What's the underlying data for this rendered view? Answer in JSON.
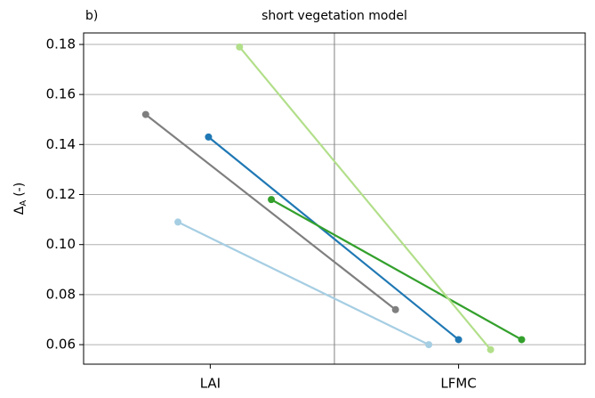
{
  "chart_data": {
    "type": "line",
    "panel_label": "b)",
    "title": "short vegetation model",
    "y_label": {
      "symbol": "Δ",
      "subscript": "A",
      "unit": "(-)"
    },
    "xlim": [
      -0.51,
      1.51
    ],
    "xticks": [
      {
        "value": 0,
        "label": "LAI"
      },
      {
        "value": 1,
        "label": "LFMC"
      }
    ],
    "ylim": [
      0.0522,
      0.1846
    ],
    "yticks": [
      0.06,
      0.08,
      {
        "value": 0.1,
        "label": "0.10"
      },
      0.12,
      0.14,
      0.16,
      0.18
    ],
    "grid": "y",
    "series": [
      {
        "color": "#7f7f7f",
        "x": [
          -0.26,
          0.746
        ],
        "values": [
          0.152,
          0.074
        ]
      },
      {
        "color": "#1f78b4",
        "x": [
          -0.007,
          1.0
        ],
        "values": [
          0.143,
          0.062
        ]
      },
      {
        "color": "#a6cee3",
        "x": [
          -0.13,
          0.88
        ],
        "values": [
          0.109,
          0.06
        ]
      },
      {
        "color": "#33a02c",
        "x": [
          0.246,
          1.254
        ],
        "values": [
          0.118,
          0.062
        ]
      },
      {
        "color": "#b2df8a",
        "x": [
          0.118,
          1.129
        ],
        "values": [
          0.179,
          0.058
        ]
      }
    ]
  }
}
